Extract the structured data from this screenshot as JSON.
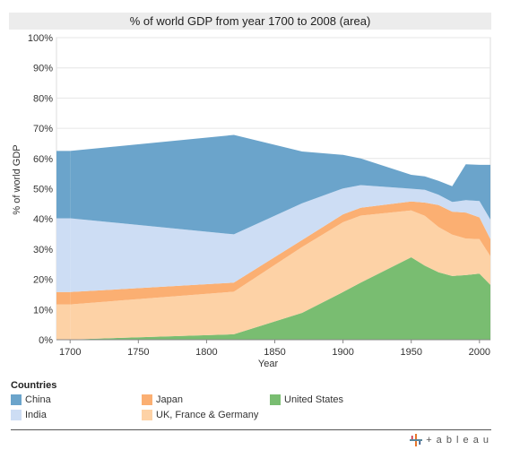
{
  "chart_data": {
    "type": "area",
    "title": "% of world GDP from year 1700 to 2008 (area)",
    "xlabel": "Year",
    "ylabel": "% of world GDP",
    "x": [
      1700,
      1820,
      1870,
      1900,
      1913,
      1950,
      1960,
      1970,
      1980,
      1990,
      2000,
      2008
    ],
    "xlim": [
      1690,
      2008
    ],
    "ylim": [
      0,
      100
    ],
    "x_ticks": [
      "1700",
      "1750",
      "1800",
      "1850",
      "1900",
      "1950",
      "2000"
    ],
    "y_ticks": [
      "0%",
      "10%",
      "20%",
      "30%",
      "40%",
      "50%",
      "60%",
      "70%",
      "80%",
      "90%",
      "100%"
    ],
    "stacked": true,
    "series": [
      {
        "name": "United States",
        "color": "#79bd71",
        "values": [
          0.1,
          1.8,
          8.9,
          15.8,
          18.9,
          27.3,
          24.5,
          22.3,
          21.1,
          21.4,
          21.9,
          18.2
        ]
      },
      {
        "name": "UK, France & Germany",
        "color": "#fdd2a6",
        "values": [
          11.6,
          14.1,
          21.8,
          23.1,
          22.2,
          15.5,
          16.5,
          15.0,
          13.7,
          12.1,
          11.4,
          9.5
        ]
      },
      {
        "name": "Japan",
        "color": "#fbaf72",
        "values": [
          4.1,
          3.0,
          2.3,
          2.6,
          2.6,
          3.0,
          4.4,
          7.3,
          7.6,
          8.6,
          7.2,
          5.6
        ]
      },
      {
        "name": "India",
        "color": "#cdddf4",
        "values": [
          24.4,
          16.0,
          12.2,
          8.6,
          7.5,
          4.2,
          4.2,
          3.4,
          3.2,
          4.1,
          5.4,
          6.5
        ]
      },
      {
        "name": "China",
        "color": "#6ba4cb",
        "values": [
          22.3,
          32.9,
          17.1,
          11.1,
          8.8,
          4.6,
          4.5,
          4.6,
          5.2,
          11.9,
          12.0,
          18.1
        ]
      }
    ],
    "legend_title": "Countries",
    "legend_position": "bottom"
  },
  "branding": {
    "logo_text": "+ a b l e a u"
  }
}
